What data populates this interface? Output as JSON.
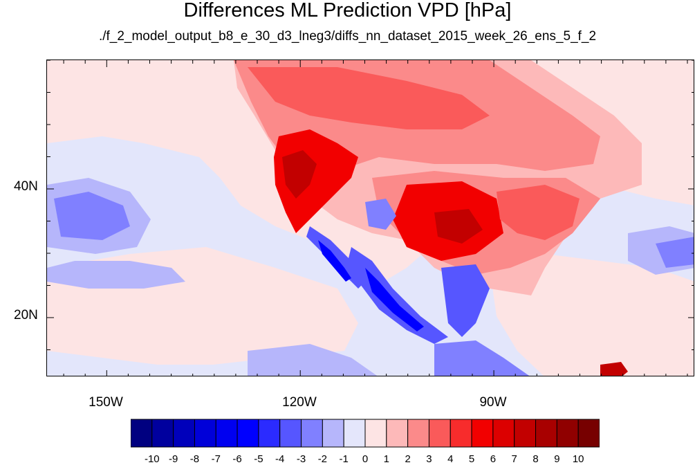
{
  "title": "Differences ML Prediction VPD [hPa]",
  "subtitle": "./f_2_model_output_b8_e_30_d3_lneg3/diffs_nn_dataset_2015_week_26_ens_5_f_2",
  "axes": {
    "lat_labels": [
      "40N",
      "20N"
    ],
    "lon_labels": [
      "150W",
      "120W",
      "90W"
    ]
  },
  "colorbar": {
    "labels": [
      "-10",
      "-9",
      "-8",
      "-7",
      "-6",
      "-5",
      "-4",
      "-3",
      "-2",
      "-1",
      "0",
      "1",
      "2",
      "3",
      "4",
      "5",
      "6",
      "7",
      "8",
      "9",
      "10"
    ],
    "colors": [
      "#000080",
      "#00009e",
      "#0000bb",
      "#0000d9",
      "#0000f0",
      "#0000ff",
      "#2b2bff",
      "#5656ff",
      "#8080ff",
      "#b6b6fb",
      "#e4e6fb",
      "#fde4e4",
      "#fdb9b9",
      "#fb8a8a",
      "#fa5a5a",
      "#f72c2c",
      "#f20000",
      "#dc0000",
      "#c20000",
      "#a80000",
      "#900000",
      "#770000"
    ]
  },
  "map_colors": {
    "ocean_neutral": "#e3e6fb",
    "light_pink": "#fde4e4",
    "pink": "#fdb9b9",
    "salmon": "#fb8a8a",
    "light_red": "#fa5a5a",
    "red": "#f20000",
    "dark_red": "#c20000",
    "light_blue": "#b6b6fb",
    "blue": "#5656ff",
    "deep_blue": "#0000ff"
  }
}
